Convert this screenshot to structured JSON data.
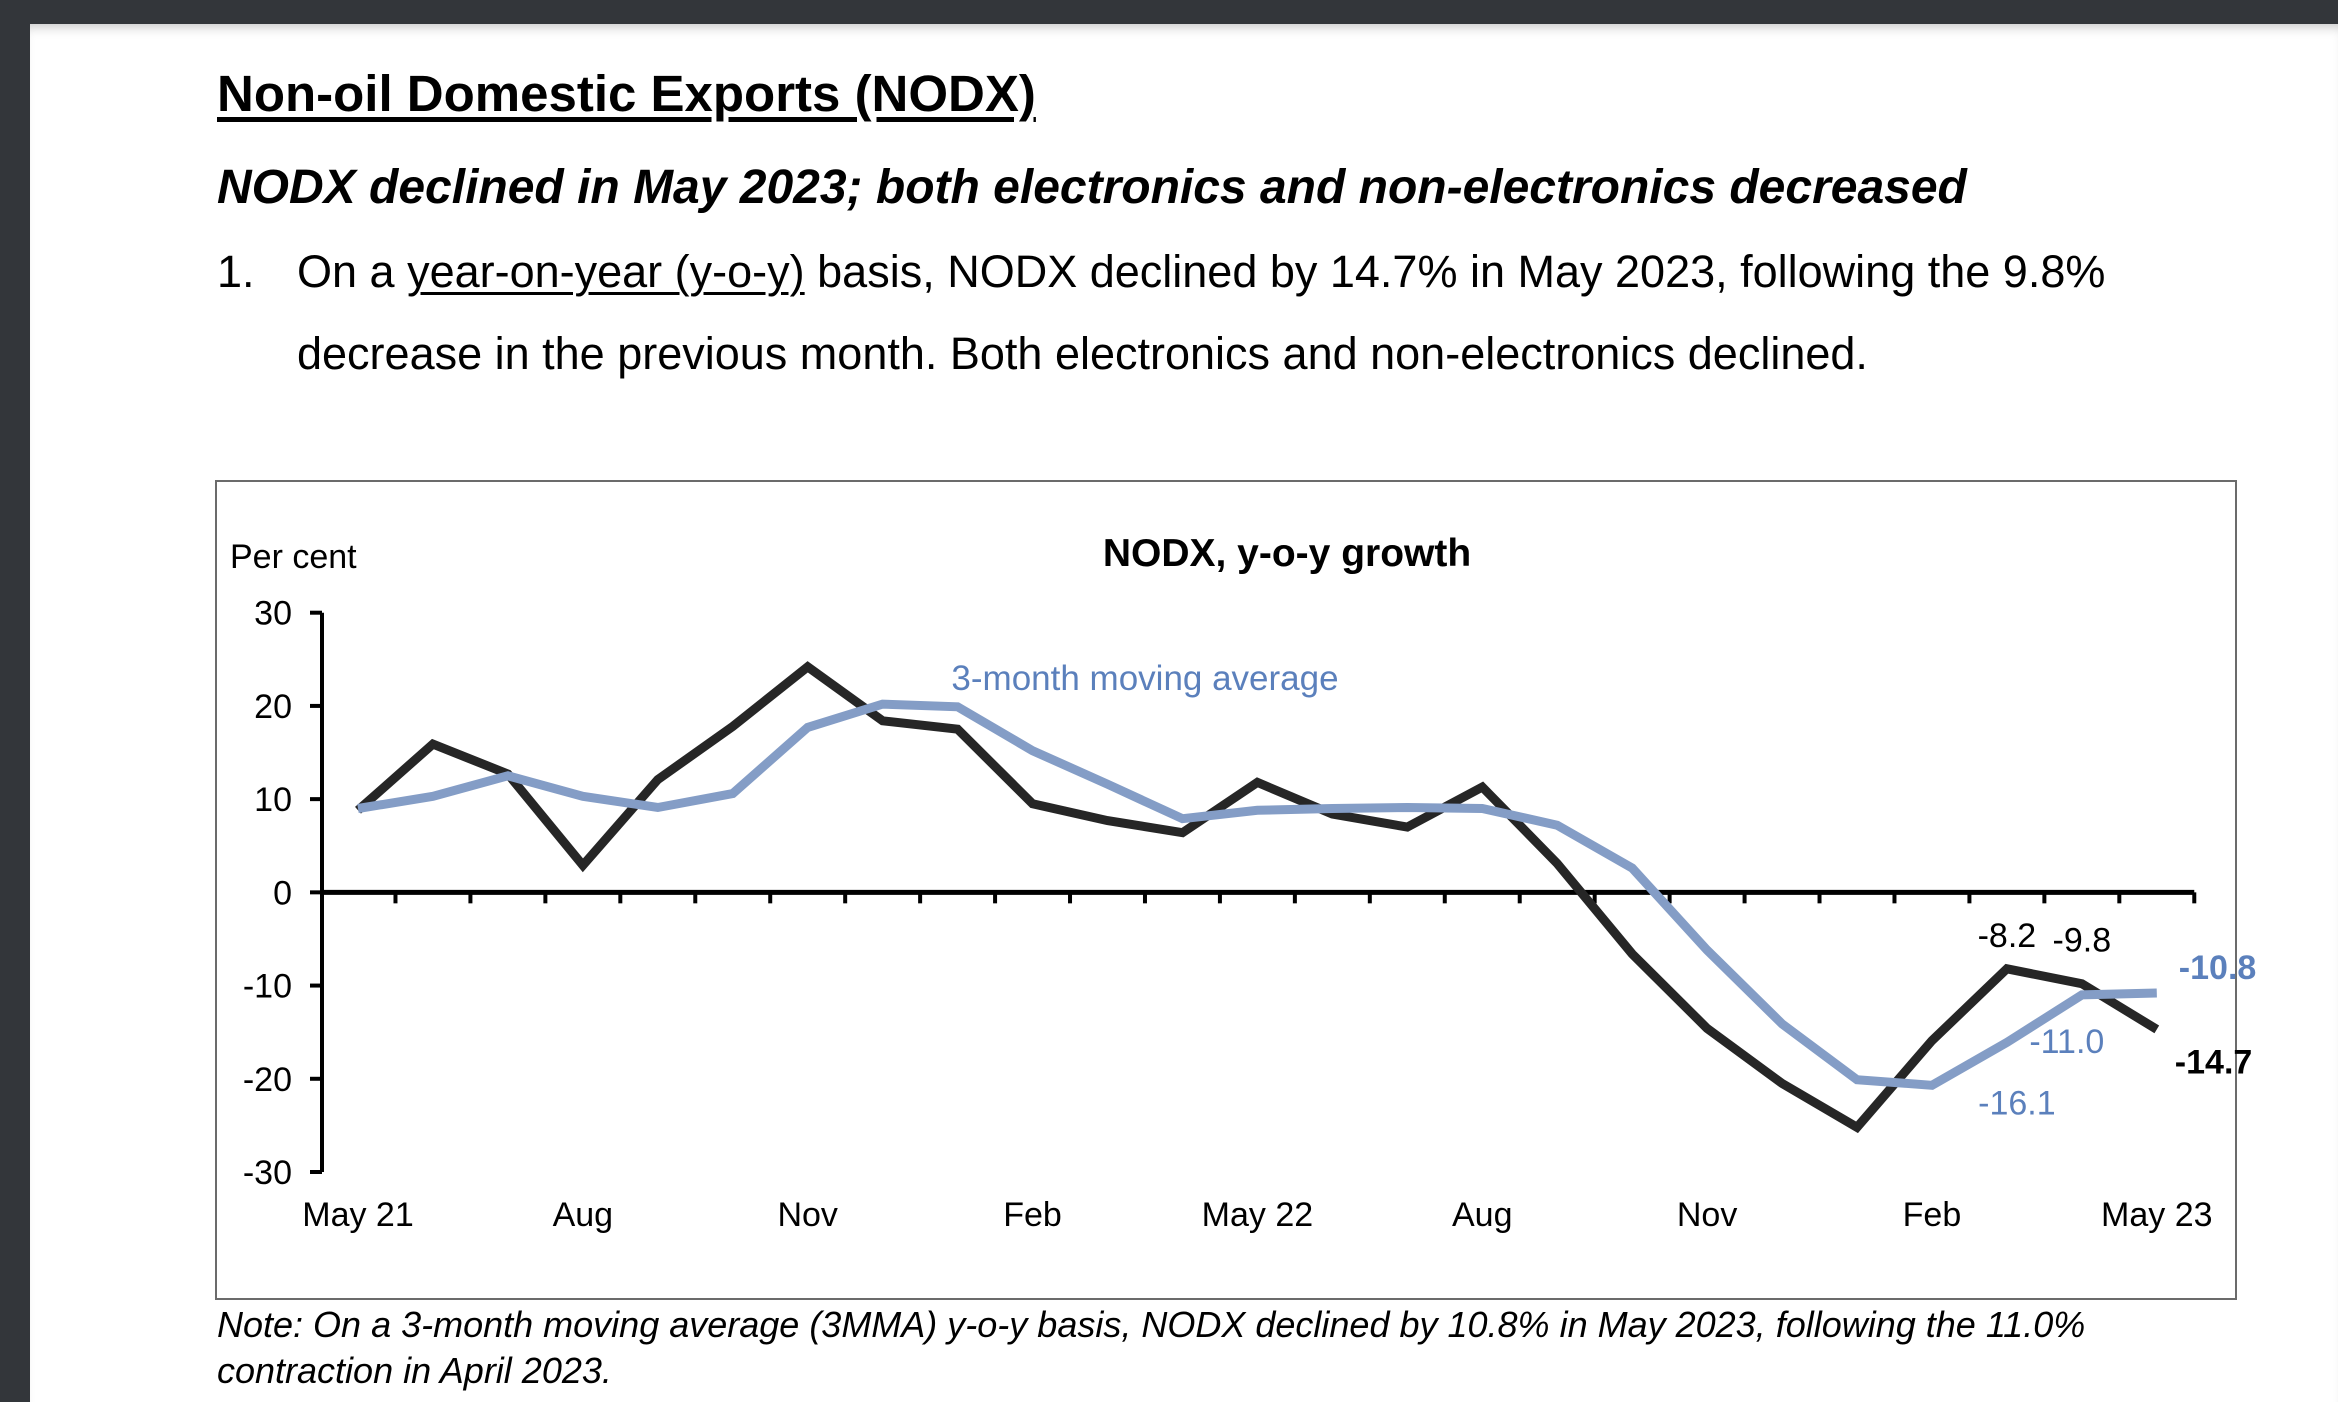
{
  "document": {
    "heading": "Non-oil Domestic Exports (NODX)",
    "subheading": "NODX declined in May 2023; both electronics and non-electronics decreased",
    "paragraph": {
      "number": "1.",
      "line1_prefix": "On a ",
      "line1_link": "year-on-year (y-o-y)",
      "line1_suffix": " basis, NODX declined by 14.7% in May 2023, following the 9.8%",
      "line2": "decrease in the previous month. Both electronics and non-electronics declined."
    },
    "note_line1": "Note: On a 3-month moving average (3MMA) y-o-y basis, NODX declined by 10.8% in May 2023, following the 11.0%",
    "note_line2": "contraction in April 2023."
  },
  "colors": {
    "nodx_line": "#262626",
    "mma_line": "#849DC6",
    "mma_text": "#5B80BC",
    "chrome": "#33363a"
  },
  "chart_data": {
    "type": "line",
    "title": "NODX, y-o-y growth",
    "ylabel": "Per cent",
    "xlabel": "",
    "ylim": [
      -30,
      30
    ],
    "yticks": [
      30,
      20,
      10,
      0,
      -10,
      -20,
      -30
    ],
    "grid": false,
    "x": [
      "May 21",
      "Jun 21",
      "Jul 21",
      "Aug 21",
      "Sep 21",
      "Oct 21",
      "Nov 21",
      "Dec 21",
      "Jan 22",
      "Feb 22",
      "Mar 22",
      "Apr 22",
      "May 22",
      "Jun 22",
      "Jul 22",
      "Aug 22",
      "Sep 22",
      "Oct 22",
      "Nov 22",
      "Dec 22",
      "Jan 23",
      "Feb 23",
      "Mar 23",
      "Apr 23",
      "May 23"
    ],
    "xtick_labels": [
      {
        "index": 0,
        "label": "May 21"
      },
      {
        "index": 3,
        "label": "Aug"
      },
      {
        "index": 6,
        "label": "Nov"
      },
      {
        "index": 9,
        "label": "Feb"
      },
      {
        "index": 12,
        "label": "May 22"
      },
      {
        "index": 15,
        "label": "Aug"
      },
      {
        "index": 18,
        "label": "Nov"
      },
      {
        "index": 21,
        "label": "Feb"
      },
      {
        "index": 24,
        "label": "May 23"
      }
    ],
    "series": [
      {
        "name": "NODX y-o-y",
        "values": [
          8.8,
          15.9,
          12.7,
          2.9,
          12.1,
          17.8,
          24.2,
          18.4,
          17.5,
          9.5,
          7.7,
          6.4,
          11.8,
          8.4,
          7.0,
          11.3,
          3.1,
          -6.6,
          -14.6,
          -20.5,
          -25.2,
          -15.9,
          -8.2,
          -9.8,
          -14.7
        ]
      },
      {
        "name": "3-month moving average",
        "values": [
          9.0,
          10.3,
          12.5,
          10.3,
          9.1,
          10.6,
          17.7,
          20.2,
          19.9,
          15.2,
          11.6,
          7.9,
          8.8,
          9.0,
          9.1,
          9.0,
          7.2,
          2.6,
          -6.2,
          -14.1,
          -20.1,
          -20.7,
          -16.1,
          -11.0,
          -10.8
        ]
      }
    ],
    "legend": {
      "label": "3-month moving average",
      "placement": "top-center"
    },
    "annotations": [
      {
        "series": 0,
        "index": 22,
        "text": "-8.2",
        "bold": false
      },
      {
        "series": 0,
        "index": 23,
        "text": "-9.8",
        "bold": false
      },
      {
        "series": 0,
        "index": 24,
        "text": "-14.7",
        "bold": true
      },
      {
        "series": 1,
        "index": 22,
        "text": "-16.1",
        "bold": false
      },
      {
        "series": 1,
        "index": 23,
        "text": "-11.0",
        "bold": false
      },
      {
        "series": 1,
        "index": 24,
        "text": "-10.8",
        "bold": true
      }
    ]
  }
}
